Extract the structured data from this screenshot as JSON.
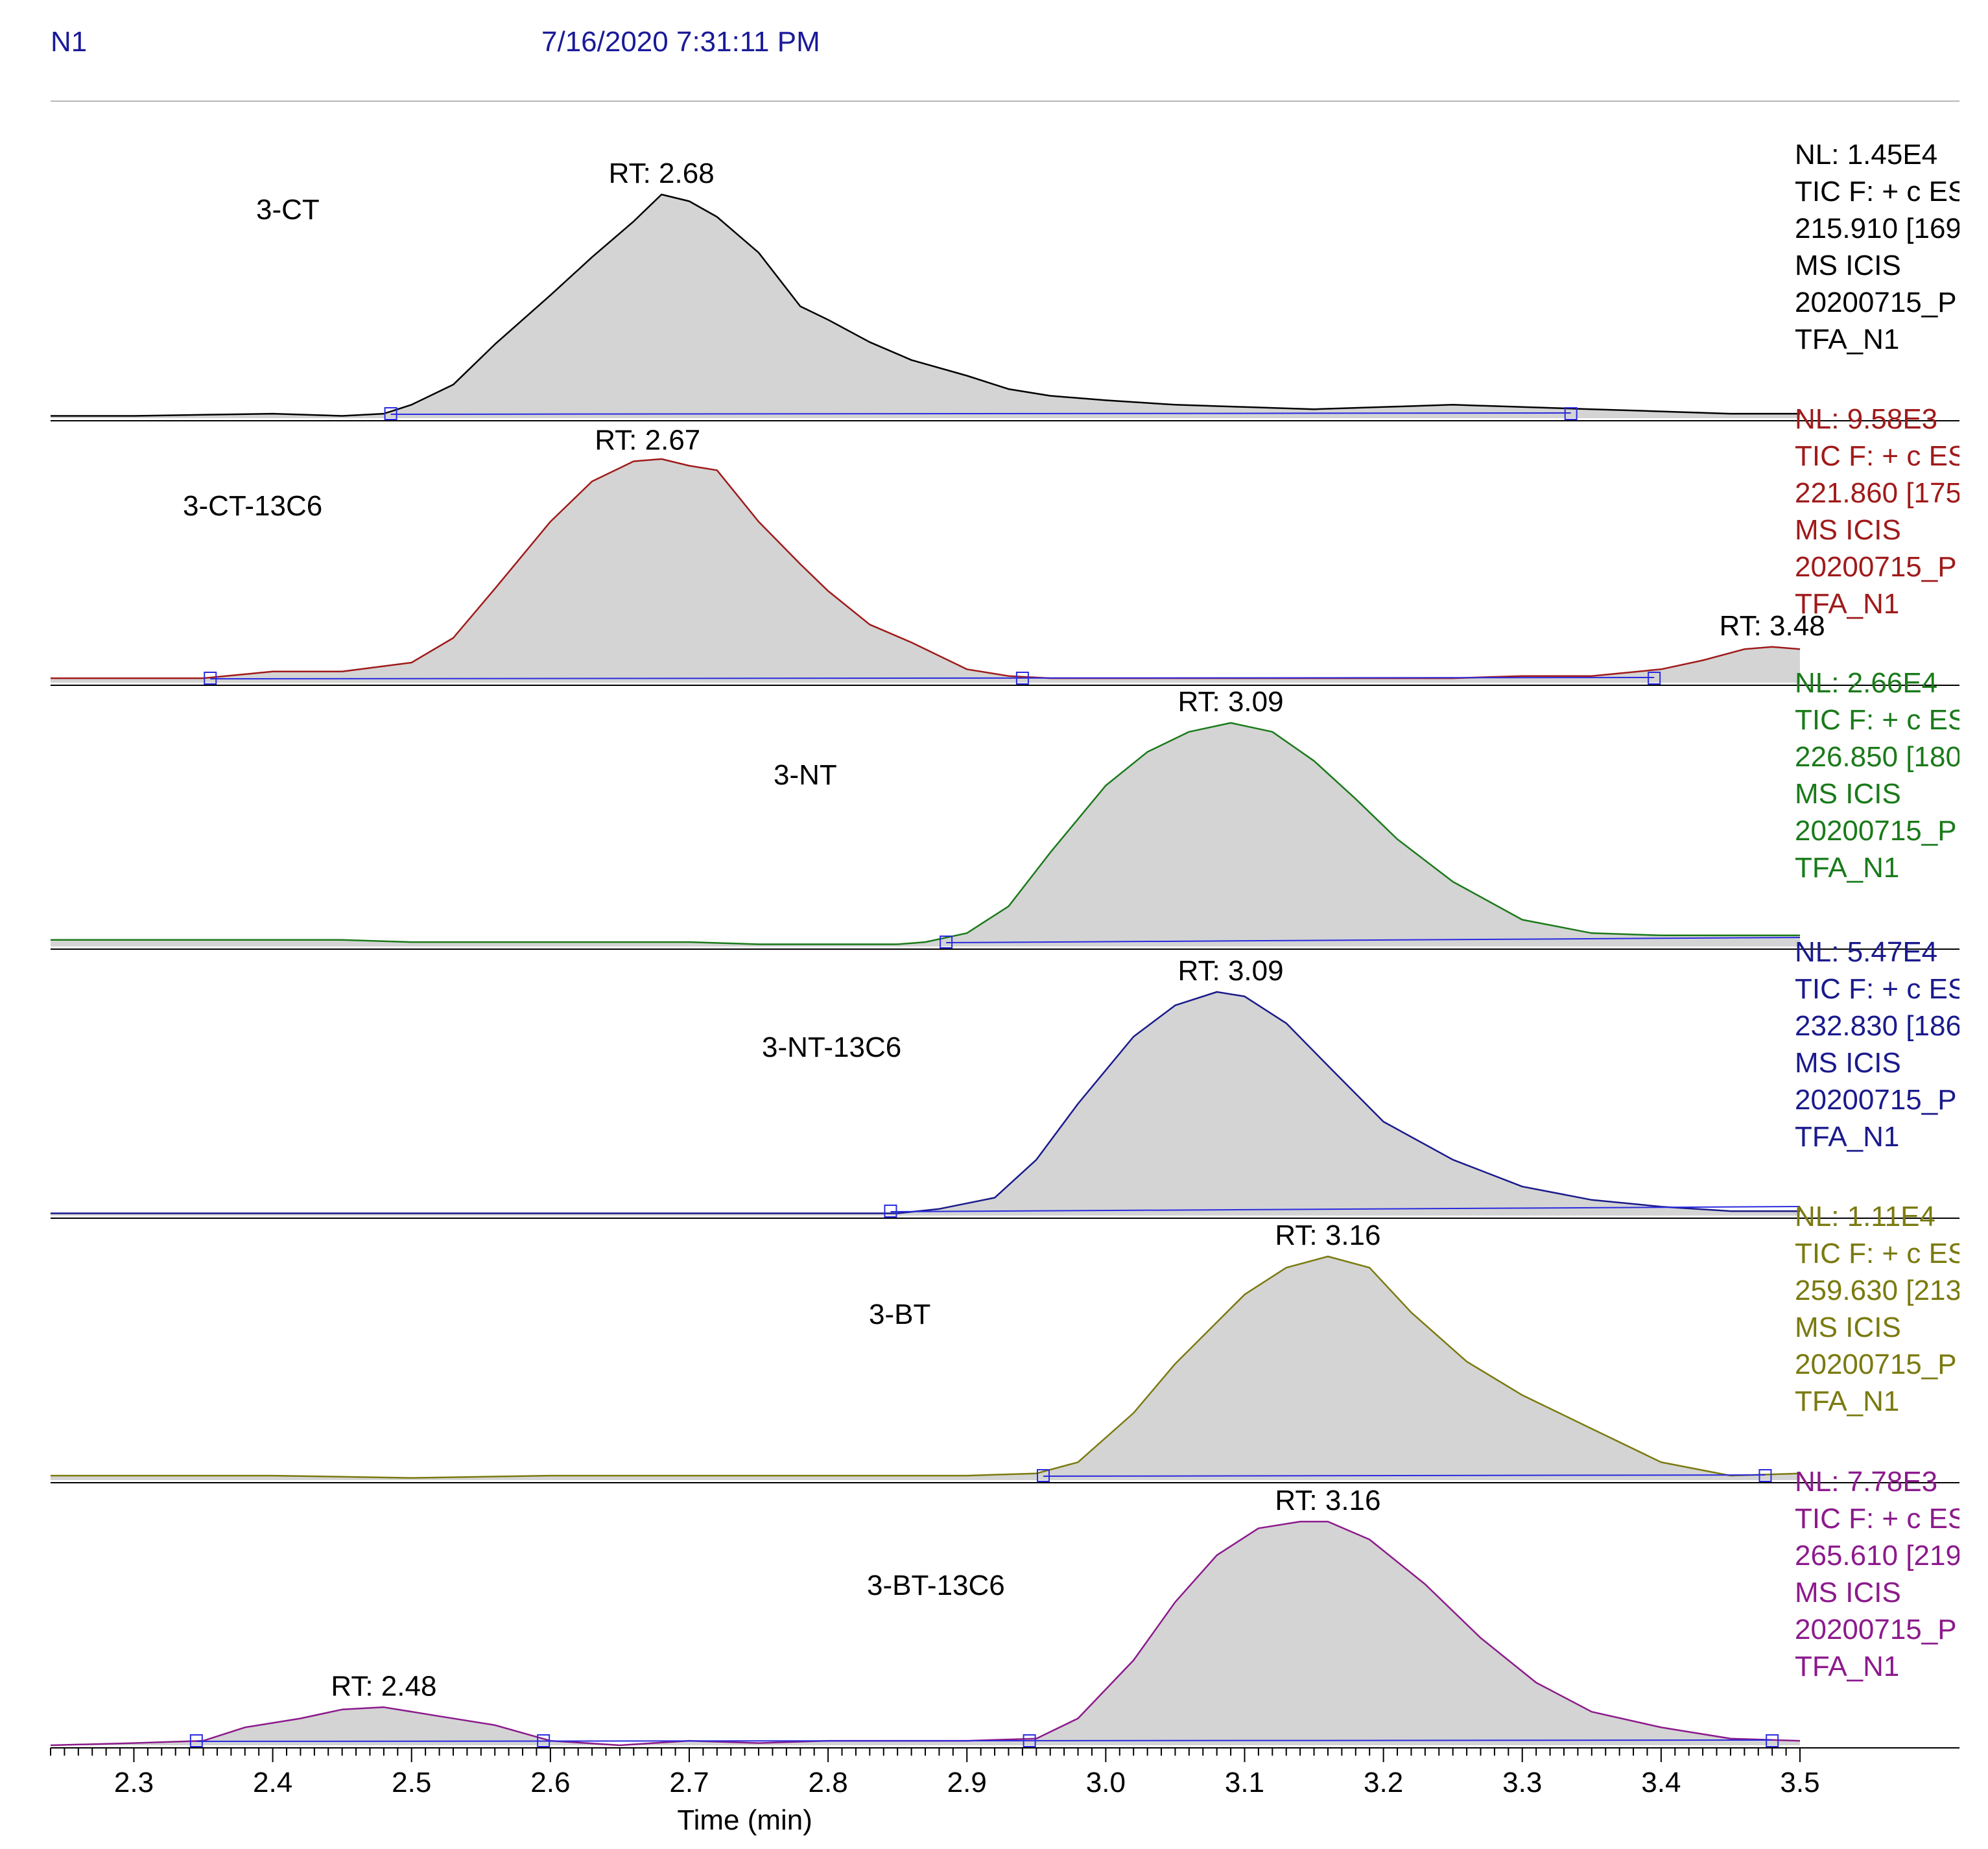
{
  "header": {
    "sample": "N1",
    "datetime": "7/16/2020 7:31:11 PM"
  },
  "chart_data": [
    {
      "type": "line",
      "name": "3-CT",
      "color": "#000000",
      "nl": "NL: 1.45E4",
      "info": [
        "TIC F: + c ESI",
        "215.910 [169",
        " MS  ICIS",
        "20200715_P",
        "TFA_N1"
      ],
      "peak_labels": [
        {
          "x": 2.68,
          "text": "RT: 2.68"
        }
      ],
      "baseline_markers": [
        2.485,
        3.335
      ],
      "x": [
        2.24,
        2.3,
        2.35,
        2.4,
        2.45,
        2.48,
        2.5,
        2.53,
        2.56,
        2.6,
        2.63,
        2.66,
        2.68,
        2.7,
        2.72,
        2.75,
        2.78,
        2.8,
        2.83,
        2.86,
        2.9,
        2.93,
        2.96,
        3.0,
        3.05,
        3.1,
        3.15,
        3.2,
        3.25,
        3.3,
        3.35,
        3.4,
        3.45,
        3.5
      ],
      "y": [
        0.01,
        0.01,
        0.015,
        0.02,
        0.01,
        0.02,
        0.06,
        0.15,
        0.33,
        0.55,
        0.72,
        0.88,
        1.0,
        0.97,
        0.9,
        0.74,
        0.5,
        0.44,
        0.34,
        0.26,
        0.19,
        0.13,
        0.1,
        0.08,
        0.06,
        0.05,
        0.04,
        0.05,
        0.06,
        0.05,
        0.04,
        0.03,
        0.02,
        0.02
      ],
      "ylim": [
        0,
        14500
      ]
    },
    {
      "type": "line",
      "name": "3-CT-13C6",
      "color": "#a01a1a",
      "nl": "NL: 9.58E3",
      "info": [
        "TIC F: + c ESI",
        "221.860 [175",
        " MS  ICIS",
        "20200715_P",
        "TFA_N1"
      ],
      "peak_labels": [
        {
          "x": 2.67,
          "text": "RT: 2.67"
        },
        {
          "x": 3.48,
          "text": "RT: 3.48"
        }
      ],
      "baseline_markers": [
        2.355,
        2.94,
        3.395
      ],
      "x": [
        2.24,
        2.3,
        2.35,
        2.4,
        2.45,
        2.5,
        2.53,
        2.56,
        2.6,
        2.63,
        2.66,
        2.68,
        2.7,
        2.72,
        2.75,
        2.78,
        2.8,
        2.83,
        2.86,
        2.9,
        2.93,
        2.96,
        3.0,
        3.05,
        3.1,
        3.15,
        3.2,
        3.25,
        3.3,
        3.35,
        3.4,
        3.43,
        3.46,
        3.48,
        3.5
      ],
      "y": [
        0.02,
        0.02,
        0.02,
        0.05,
        0.05,
        0.09,
        0.2,
        0.42,
        0.72,
        0.9,
        0.99,
        1.0,
        0.97,
        0.95,
        0.72,
        0.53,
        0.41,
        0.26,
        0.18,
        0.06,
        0.03,
        0.02,
        0.02,
        0.02,
        0.02,
        0.02,
        0.02,
        0.02,
        0.03,
        0.03,
        0.06,
        0.1,
        0.15,
        0.16,
        0.15
      ],
      "ylim": [
        0,
        9580
      ]
    },
    {
      "type": "line",
      "name": "3-NT",
      "color": "#1a7a1a",
      "nl": "NL: 2.66E4",
      "info": [
        "TIC F: + c ESI",
        "226.850 [180",
        " MS  ICIS",
        "20200715_P",
        "TFA_N1"
      ],
      "peak_labels": [
        {
          "x": 3.09,
          "text": "RT: 3.09"
        }
      ],
      "baseline_markers": [
        2.885
      ],
      "x": [
        2.24,
        2.3,
        2.35,
        2.4,
        2.45,
        2.5,
        2.55,
        2.6,
        2.65,
        2.7,
        2.75,
        2.8,
        2.85,
        2.87,
        2.9,
        2.93,
        2.96,
        3.0,
        3.03,
        3.06,
        3.09,
        3.12,
        3.15,
        3.18,
        3.21,
        3.25,
        3.3,
        3.35,
        3.4,
        3.45,
        3.5
      ],
      "y": [
        0.03,
        0.03,
        0.03,
        0.03,
        0.03,
        0.02,
        0.02,
        0.02,
        0.02,
        0.02,
        0.01,
        0.01,
        0.01,
        0.02,
        0.06,
        0.18,
        0.42,
        0.72,
        0.87,
        0.96,
        1.0,
        0.96,
        0.83,
        0.66,
        0.48,
        0.29,
        0.12,
        0.06,
        0.05,
        0.05,
        0.05
      ],
      "ylim": [
        0,
        26600
      ]
    },
    {
      "type": "line",
      "name": "3-NT-13C6",
      "color": "#1a1a8c",
      "nl": "NL: 5.47E4",
      "info": [
        "TIC F: + c ESI",
        "232.830 [186",
        " MS  ICIS",
        "20200715_P",
        "TFA_N1"
      ],
      "peak_labels": [
        {
          "x": 3.09,
          "text": "RT: 3.09"
        }
      ],
      "baseline_markers": [
        2.845
      ],
      "x": [
        2.24,
        2.3,
        2.4,
        2.5,
        2.6,
        2.7,
        2.8,
        2.85,
        2.88,
        2.92,
        2.95,
        2.98,
        3.02,
        3.05,
        3.08,
        3.1,
        3.13,
        3.16,
        3.2,
        3.25,
        3.3,
        3.35,
        3.4,
        3.45,
        3.5
      ],
      "y": [
        0.01,
        0.01,
        0.01,
        0.01,
        0.01,
        0.01,
        0.01,
        0.01,
        0.03,
        0.08,
        0.25,
        0.5,
        0.8,
        0.94,
        1.0,
        0.98,
        0.86,
        0.67,
        0.42,
        0.25,
        0.13,
        0.07,
        0.04,
        0.02,
        0.02
      ],
      "ylim": [
        0,
        54700
      ]
    },
    {
      "type": "line",
      "name": "3-BT",
      "color": "#7a7a10",
      "nl": "NL: 1.11E4",
      "info": [
        "TIC F: + c ESI",
        "259.630 [213",
        " MS  ICIS",
        "20200715_P",
        "TFA_N1"
      ],
      "peak_labels": [
        {
          "x": 3.16,
          "text": "RT: 3.16"
        }
      ],
      "baseline_markers": [
        2.955,
        3.475
      ],
      "x": [
        2.24,
        2.3,
        2.4,
        2.5,
        2.6,
        2.7,
        2.8,
        2.9,
        2.95,
        2.98,
        3.02,
        3.05,
        3.1,
        3.13,
        3.16,
        3.19,
        3.22,
        3.26,
        3.3,
        3.35,
        3.4,
        3.45,
        3.5
      ],
      "y": [
        0.02,
        0.02,
        0.02,
        0.01,
        0.02,
        0.02,
        0.02,
        0.02,
        0.03,
        0.08,
        0.3,
        0.52,
        0.83,
        0.95,
        1.0,
        0.95,
        0.75,
        0.53,
        0.38,
        0.23,
        0.08,
        0.02,
        0.03
      ],
      "ylim": [
        0,
        11100
      ]
    },
    {
      "type": "line",
      "name": "3-BT-13C6",
      "color": "#8c1a8c",
      "nl": "NL: 7.78E3",
      "info": [
        "TIC F: + c ESI",
        "265.610 [219",
        " MS  ICIS",
        "20200715_P",
        "TFA_N1"
      ],
      "peak_labels": [
        {
          "x": 2.48,
          "text": "RT: 2.48"
        },
        {
          "x": 3.16,
          "text": "RT: 3.16"
        }
      ],
      "baseline_markers": [
        2.345,
        2.595,
        2.945,
        3.48
      ],
      "x": [
        2.24,
        2.3,
        2.35,
        2.38,
        2.42,
        2.45,
        2.48,
        2.52,
        2.56,
        2.6,
        2.65,
        2.7,
        2.75,
        2.8,
        2.85,
        2.9,
        2.95,
        2.98,
        3.02,
        3.05,
        3.08,
        3.11,
        3.14,
        3.16,
        3.19,
        3.23,
        3.27,
        3.31,
        3.35,
        3.4,
        3.45,
        3.5
      ],
      "y": [
        0.0,
        0.01,
        0.02,
        0.08,
        0.12,
        0.16,
        0.17,
        0.13,
        0.09,
        0.02,
        0.0,
        0.02,
        0.01,
        0.02,
        0.02,
        0.02,
        0.03,
        0.12,
        0.38,
        0.64,
        0.85,
        0.97,
        1.0,
        1.0,
        0.92,
        0.72,
        0.48,
        0.28,
        0.15,
        0.08,
        0.03,
        0.02
      ],
      "ylim": [
        0,
        7780
      ]
    }
  ],
  "x_axis": {
    "label": "Time (min)",
    "range": [
      2.24,
      3.5
    ],
    "ticks": [
      "2.3",
      "2.4",
      "2.5",
      "2.6",
      "2.7",
      "2.8",
      "2.9",
      "3.0",
      "3.1",
      "3.2",
      "3.3",
      "3.4",
      "3.5"
    ]
  }
}
